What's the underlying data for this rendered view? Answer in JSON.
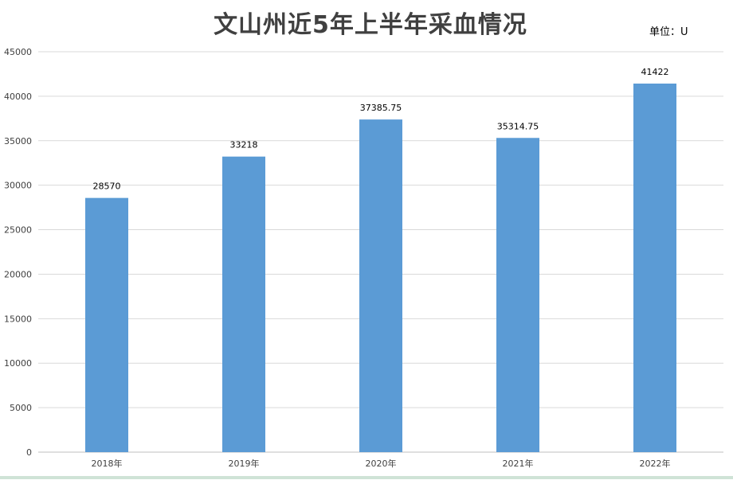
{
  "title": "文山州近5年上半年采血情况",
  "unit_label": "单位：U",
  "colors": {
    "bar": "#5B9BD5",
    "grid": "#D9D9D9",
    "text": "#404040"
  },
  "chart_data": {
    "type": "bar",
    "title": "文山州近5年上半年采血情况",
    "categories": [
      "2018年",
      "2019年",
      "2020年",
      "2021年",
      "2022年"
    ],
    "values": [
      28570,
      33218,
      37385.75,
      35314.75,
      41422
    ],
    "data_labels": [
      "28570",
      "33218",
      "37385.75",
      "35314.75",
      "41422"
    ],
    "y_ticks": [
      0,
      5000,
      10000,
      15000,
      20000,
      25000,
      30000,
      35000,
      40000,
      45000
    ],
    "ylim": [
      0,
      45000
    ],
    "grid": true,
    "legend": "none"
  }
}
